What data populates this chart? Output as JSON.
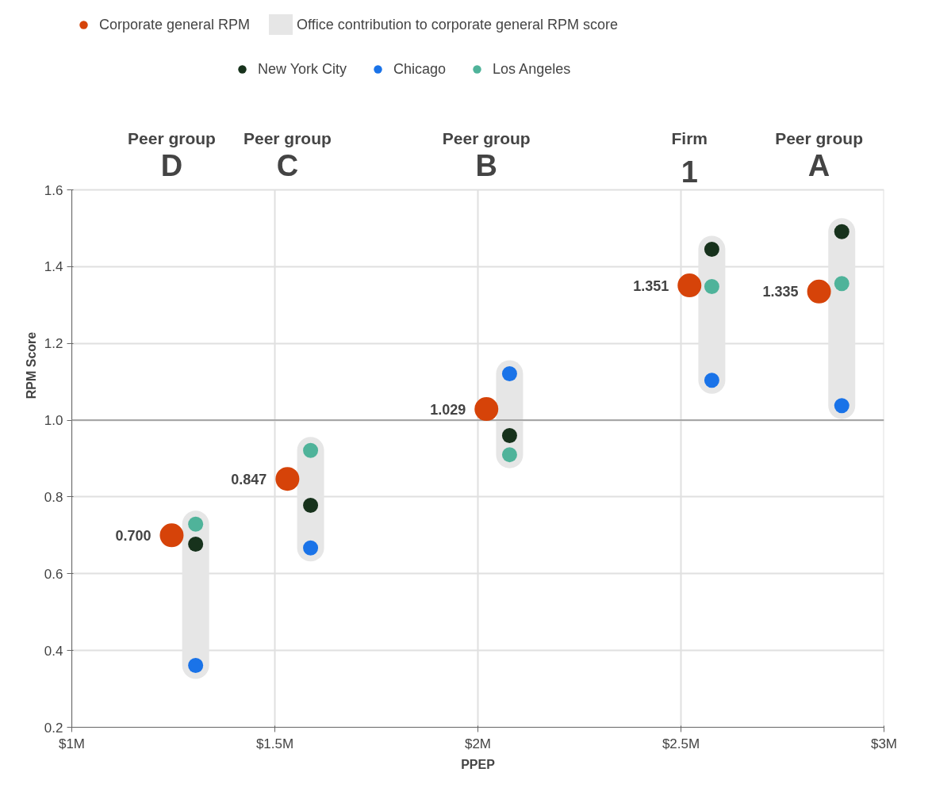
{
  "chart_data": {
    "type": "scatter",
    "xlabel": "PPEP",
    "ylabel": "RPM Score",
    "xlim": [
      1,
      3
    ],
    "ylim": [
      0.2,
      1.6
    ],
    "xticks": [
      {
        "value": 1,
        "label": "$1M"
      },
      {
        "value": 1.5,
        "label": "$1.5M"
      },
      {
        "value": 2,
        "label": "$2M"
      },
      {
        "value": 2.5,
        "label": "$2.5M"
      },
      {
        "value": 3,
        "label": "$3M"
      }
    ],
    "yticks": [
      0.2,
      0.4,
      0.6,
      0.8,
      {
        "value": 1.0,
        "label": "1.0"
      },
      1.2,
      1.4,
      1.6
    ],
    "grid": true,
    "legend": "top",
    "marker": "circle",
    "ref_lines": [
      {
        "axis": "y",
        "value": 1.0,
        "color": "#a6a6a6"
      }
    ],
    "series": [
      {
        "name": "Corporate general RPM",
        "color": "#d64309",
        "x": [
          1.246,
          1.531,
          2.021,
          2.521,
          2.84
        ],
        "values": [
          0.7,
          0.847,
          1.029,
          1.351,
          1.335
        ],
        "value_labels": [
          "0.700",
          "0.847",
          "1.029",
          "1.351",
          "1.335"
        ]
      },
      {
        "name": "Office contribution to corporate general RPM score",
        "type": "bar",
        "color": "#e6e6e6",
        "x": [
          1.305,
          1.588,
          2.078,
          2.576,
          2.896
        ],
        "base": [
          0.361,
          0.667,
          0.91,
          1.104,
          1.038
        ],
        "values": [
          0.368,
          0.254,
          0.211,
          0.341,
          0.453
        ]
      },
      {
        "name": "New York City",
        "color": "#17321c",
        "x": [
          1.305,
          1.588,
          2.078,
          2.576,
          2.896
        ],
        "values": [
          0.677,
          0.778,
          0.96,
          1.445,
          1.491
        ]
      },
      {
        "name": "Chicago",
        "color": "#1a73e8",
        "x": [
          1.305,
          1.588,
          2.078,
          2.576,
          2.896
        ],
        "values": [
          0.361,
          0.667,
          1.121,
          1.104,
          1.038
        ]
      },
      {
        "name": "Los Angeles",
        "color": "#4fb39a",
        "x": [
          1.305,
          1.588,
          2.078,
          2.576,
          2.896
        ],
        "values": [
          0.729,
          0.921,
          0.91,
          1.348,
          1.356
        ]
      }
    ],
    "annotations": [
      "Peer group\nD",
      "Peer group\nC",
      "Peer group\nB",
      "Firm\n1",
      "Peer group\nA"
    ]
  }
}
